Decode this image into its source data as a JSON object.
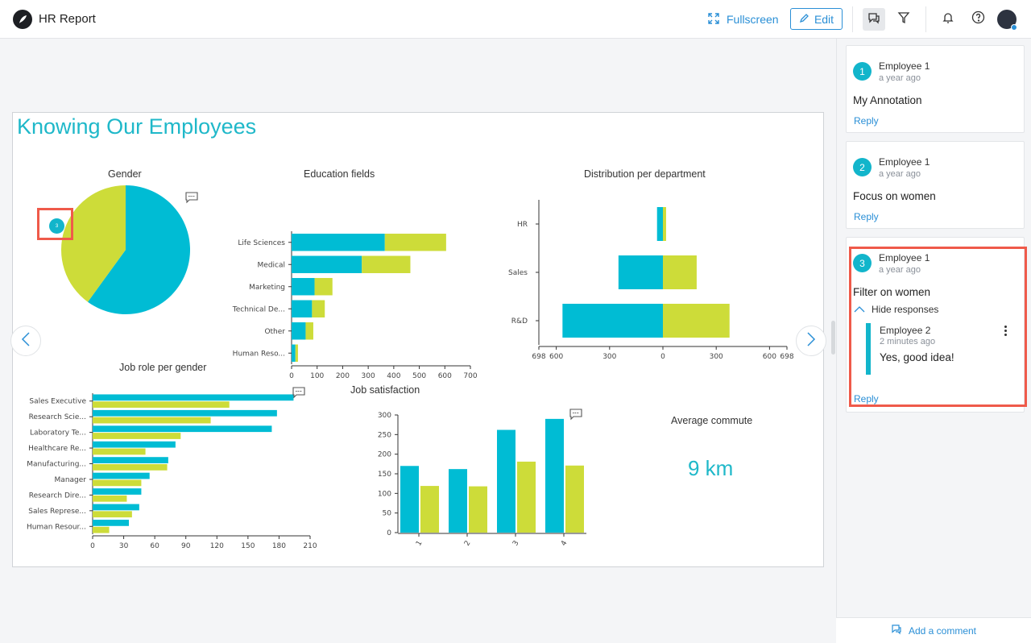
{
  "header": {
    "app_title": "HR Report",
    "fullscreen_label": "Fullscreen",
    "edit_label": "Edit"
  },
  "report": {
    "title": "Knowing Our Employees",
    "annotation_marker_label": "3",
    "average_commute": {
      "title": "Average commute",
      "value": "9 km"
    }
  },
  "colors": {
    "teal": "#00bcd4",
    "lime": "#cddc39",
    "accent": "#2a8fd6",
    "highlight": "#ef5a4a"
  },
  "chart_data": [
    {
      "type": "pie",
      "title": "Gender",
      "slices": [
        {
          "name": "teal",
          "value": 60
        },
        {
          "name": "lime",
          "value": 40
        }
      ]
    },
    {
      "type": "bar",
      "orientation": "horizontal",
      "stacked": true,
      "title": "Education fields",
      "categories": [
        "Life Sciences",
        "Medical",
        "Marketing",
        "Technical De...",
        "Other",
        "Human Reso..."
      ],
      "series": [
        {
          "name": "teal",
          "values": [
            365,
            275,
            90,
            80,
            55,
            15
          ]
        },
        {
          "name": "lime",
          "values": [
            240,
            190,
            70,
            50,
            30,
            10
          ]
        }
      ],
      "xlim": [
        0,
        700
      ],
      "xticks": [
        "0",
        "100",
        "200",
        "300",
        "400",
        "500",
        "600",
        "700"
      ]
    },
    {
      "type": "bar",
      "orientation": "horizontal",
      "diverging": true,
      "title": "Distribution per department",
      "categories": [
        "HR",
        "Sales",
        "R&D"
      ],
      "series": [
        {
          "name": "teal",
          "values": [
            33,
            250,
            565
          ]
        },
        {
          "name": "lime",
          "values": [
            18,
            190,
            375
          ]
        }
      ],
      "xlim": [
        -698,
        698
      ],
      "xticks": [
        "698",
        "600",
        "300",
        "0",
        "300",
        "600",
        "698"
      ]
    },
    {
      "type": "bar",
      "orientation": "horizontal",
      "grouped": true,
      "title": "Job role per gender",
      "categories": [
        "Sales Executive",
        "Research Scie...",
        "Laboratory Te...",
        "Healthcare Re...",
        "Manufacturing...",
        "Manager",
        "Research Dire...",
        "Sales Represe...",
        "Human Resour..."
      ],
      "series": [
        {
          "name": "teal",
          "values": [
            194,
            178,
            173,
            80,
            73,
            55,
            47,
            45,
            35
          ]
        },
        {
          "name": "lime",
          "values": [
            132,
            114,
            85,
            51,
            72,
            47,
            33,
            38,
            16
          ]
        }
      ],
      "xlim": [
        0,
        210
      ],
      "xticks": [
        "0",
        "30",
        "60",
        "90",
        "120",
        "150",
        "180",
        "210"
      ]
    },
    {
      "type": "bar",
      "orientation": "vertical",
      "grouped": true,
      "title": "Job satisfaction",
      "categories": [
        "1",
        "2",
        "3",
        "4"
      ],
      "series": [
        {
          "name": "teal",
          "values": [
            170,
            162,
            262,
            290
          ]
        },
        {
          "name": "lime",
          "values": [
            119,
            118,
            181,
            171
          ]
        }
      ],
      "ylim": [
        0,
        300
      ],
      "yticks": [
        "0",
        "50",
        "100",
        "150",
        "200",
        "250",
        "300"
      ]
    }
  ],
  "comments": [
    {
      "number": "1",
      "author": "Employee 1",
      "time": "a year ago",
      "text": "My Annotation",
      "reply_label": "Reply"
    },
    {
      "number": "2",
      "author": "Employee 1",
      "time": "a year ago",
      "text": "Focus on women",
      "reply_label": "Reply"
    },
    {
      "number": "3",
      "author": "Employee 1",
      "time": "a year ago",
      "text": "Filter on women",
      "hide_responses_label": "Hide responses",
      "response": {
        "author": "Employee 2",
        "time": "2 minutes ago",
        "text": "Yes, good idea!"
      },
      "reply_label": "Reply"
    }
  ],
  "add_comment_label": "Add a comment",
  "icons": [
    "logo-icon",
    "fullscreen-icon",
    "pencil-icon",
    "comments-icon",
    "filter-icon",
    "bell-icon",
    "help-icon",
    "chevron-left-icon",
    "chevron-right-icon",
    "comment-icon",
    "chevron-up-icon",
    "kebab-icon"
  ]
}
